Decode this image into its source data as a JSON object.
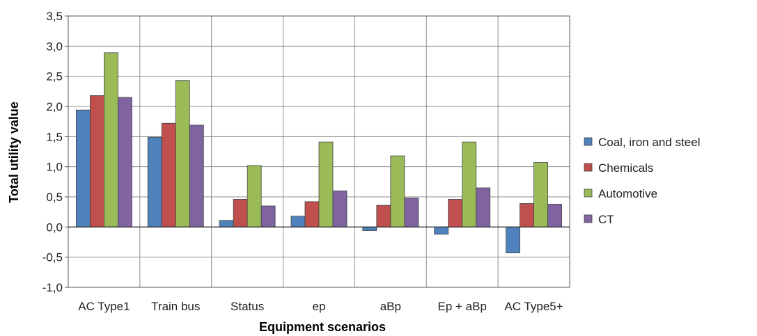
{
  "chart_data": {
    "type": "bar",
    "title": "",
    "xlabel": "Equipment scenarios",
    "ylabel": "Total utility value",
    "ylim": [
      -1.0,
      3.5
    ],
    "ytick_step": 0.5,
    "ytick_labels": [
      "-1,0",
      "-0,5",
      "0,0",
      "0,5",
      "1,0",
      "1,5",
      "2,0",
      "2,5",
      "3,0",
      "3,5"
    ],
    "grid": true,
    "legend_position": "right",
    "categories": [
      "AC Type1",
      "Train bus",
      "Status",
      "ep",
      "aBp",
      "Ep + aBp",
      "AC Type5+"
    ],
    "series": [
      {
        "name": "Coal, iron and steel",
        "color": "#4f81bd",
        "values": [
          1.94,
          1.49,
          0.11,
          0.18,
          -0.06,
          -0.12,
          -0.43
        ]
      },
      {
        "name": "Chemicals",
        "color": "#c0504d",
        "values": [
          2.18,
          1.72,
          0.46,
          0.42,
          0.36,
          0.46,
          0.39
        ]
      },
      {
        "name": "Automotive",
        "color": "#9bbb59",
        "values": [
          2.89,
          2.43,
          1.02,
          1.41,
          1.18,
          1.41,
          1.07
        ]
      },
      {
        "name": "CT",
        "color": "#8064a2",
        "values": [
          2.15,
          1.69,
          0.35,
          0.6,
          0.48,
          0.65,
          0.38
        ]
      }
    ]
  }
}
